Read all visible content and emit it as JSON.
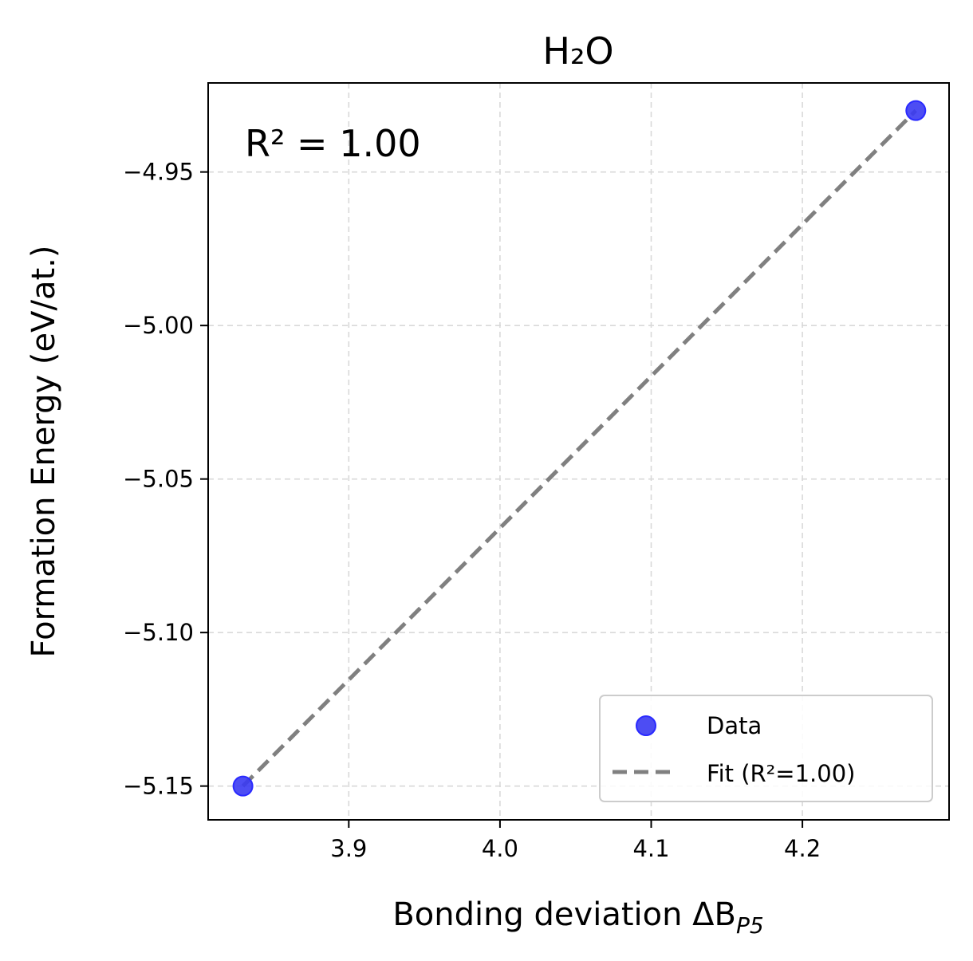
{
  "chart_data": {
    "type": "scatter",
    "title": "H₂O",
    "xlabel": "Bonding deviation ΔB",
    "xlabel_sub": "P5",
    "ylabel": "Formation Energy (eV/at.)",
    "xlim": [
      3.807,
      4.297
    ],
    "ylim": [
      -5.161,
      -4.921
    ],
    "xticks": [
      3.9,
      4.0,
      4.1,
      4.2
    ],
    "xtick_labels": [
      "3.9",
      "4.0",
      "4.1",
      "4.2"
    ],
    "yticks": [
      -4.95,
      -5.0,
      -5.05,
      -5.1,
      -5.15
    ],
    "ytick_labels": [
      "−4.95",
      "−5.00",
      "−5.05",
      "−5.10",
      "−5.15"
    ],
    "grid": true,
    "annotation": "R² = 1.00",
    "legend_position": "lower-right",
    "series": [
      {
        "name": "Data",
        "kind": "scatter",
        "color": "#3a3af2",
        "points": [
          {
            "x": 3.83,
            "y": -5.15
          },
          {
            "x": 4.275,
            "y": -4.93
          }
        ]
      },
      {
        "name": "Fit (R²=1.00)",
        "kind": "line",
        "style": "dashed",
        "color": "#808080",
        "points": [
          {
            "x": 3.83,
            "y": -5.15
          },
          {
            "x": 4.275,
            "y": -4.93
          }
        ]
      }
    ]
  }
}
